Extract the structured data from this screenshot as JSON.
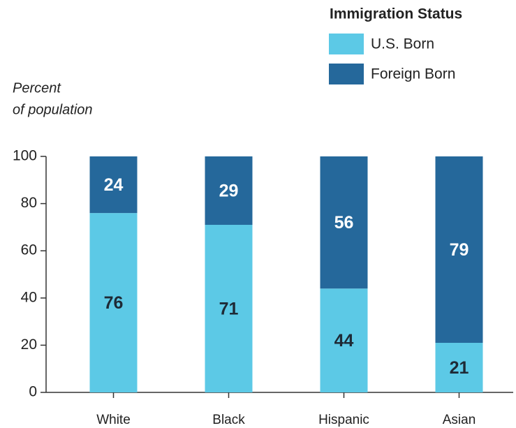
{
  "chart_data": {
    "type": "stacked_bar",
    "ylabel": [
      "Percent",
      "of population"
    ],
    "legend_title": "Immigration Status",
    "categories": [
      "White",
      "Black",
      "Hispanic",
      "Asian"
    ],
    "series": [
      {
        "name": "U.S. Born",
        "color": "#5cc9e6",
        "label_color": "#1e2a36",
        "values": [
          76,
          71,
          44,
          21
        ]
      },
      {
        "name": "Foreign Born",
        "color": "#25689b",
        "label_color": "#ffffff",
        "values": [
          24,
          29,
          56,
          79
        ]
      }
    ],
    "ylim": [
      0,
      100
    ],
    "yticks": [
      0,
      20,
      40,
      60,
      80,
      100
    ],
    "grid": false
  }
}
